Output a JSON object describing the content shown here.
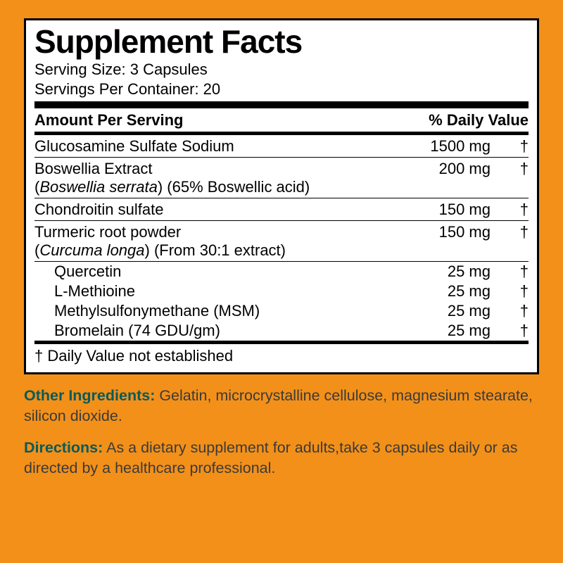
{
  "colors": {
    "background": "#f39019",
    "panel_bg": "#ffffff",
    "border": "#000000",
    "text": "#000000",
    "below_label": "#0a5a5a",
    "below_text": "#3a3a3a"
  },
  "title": "Supplement Facts",
  "serving_size": "Serving Size: 3 Capsules",
  "servings_per_container": "Servings Per Container: 20",
  "header_left": "Amount Per Serving",
  "header_right": "% Daily Value",
  "rows": [
    {
      "name": "Glucosamine Sulfate Sodium",
      "detail": "",
      "amount": "1500 mg",
      "dv": "†"
    },
    {
      "name": "Boswellia Extract",
      "detail": "(Boswellia serrata) (65% Boswellic acid)",
      "italic_part": "Boswellia serrata",
      "detail_rest": ") (65% Boswellic acid)",
      "amount": "200 mg",
      "dv": "†"
    },
    {
      "name": "Chondroitin sulfate",
      "detail": "",
      "amount": "150 mg",
      "dv": "†"
    },
    {
      "name": "Turmeric root powder",
      "detail": "(Curcuma longa) (From 30:1 extract)",
      "italic_part": "Curcuma longa",
      "detail_rest": ") (From 30:1 extract)",
      "amount": "150 mg",
      "dv": "†"
    }
  ],
  "sub_rows": [
    {
      "name": "Quercetin",
      "amount": "25 mg",
      "dv": "†"
    },
    {
      "name": "L-Methioine",
      "amount": "25 mg",
      "dv": "†"
    },
    {
      "name": "Methylsulfonymethane (MSM)",
      "amount": "25 mg",
      "dv": "†"
    },
    {
      "name": "Bromelain (74 GDU/gm)",
      "amount": "25 mg",
      "dv": "†"
    }
  ],
  "footnote": "† Daily Value not established",
  "other_ingredients_label": "Other Ingredients:",
  "other_ingredients_text": " Gelatin, microcrystalline cellulose, magnesium stearate, silicon dioxide.",
  "directions_label": "Directions:",
  "directions_text": " As a dietary supplement for adults,take 3 capsules daily or as directed by a healthcare professional."
}
